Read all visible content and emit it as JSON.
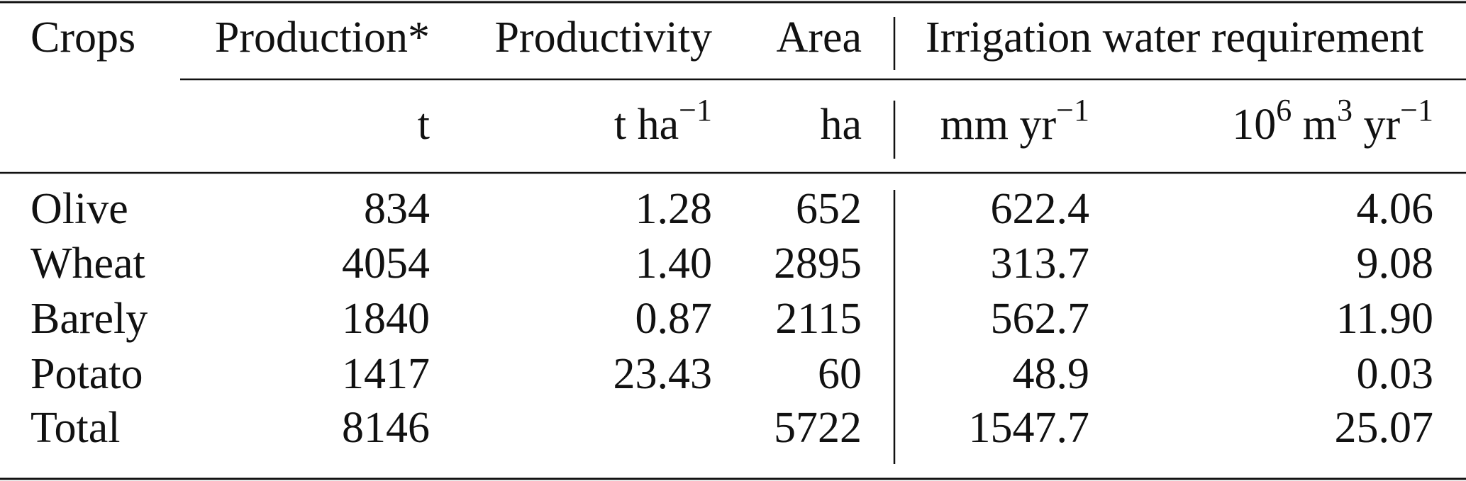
{
  "table": {
    "header": [
      "Crops",
      "Production*",
      "Productivity",
      "Area",
      "Irrigation water requirement"
    ],
    "units": [
      [
        {
          "text": "t"
        }
      ],
      [
        {
          "text": "t ha"
        },
        {
          "sup": "−1"
        }
      ],
      [
        {
          "text": "ha"
        }
      ],
      [
        {
          "text": "mm yr"
        },
        {
          "sup": "−1"
        }
      ],
      [
        {
          "text": "10"
        },
        {
          "sup": "6"
        },
        {
          "text": " m"
        },
        {
          "sup": "3"
        },
        {
          "text": " yr"
        },
        {
          "sup": "−1"
        }
      ]
    ],
    "rows": [
      [
        "Olive",
        "834",
        "1.28",
        "652",
        "622.4",
        "4.06"
      ],
      [
        "Wheat",
        "4054",
        "1.40",
        "2895",
        "313.7",
        "9.08"
      ],
      [
        "Barely",
        "1840",
        "0.87",
        "2115",
        "562.7",
        "11.90"
      ],
      [
        "Potato",
        "1417",
        "23.43",
        "60",
        "48.9",
        "0.03"
      ],
      [
        "Total",
        "8146",
        null,
        "5722",
        "1547.7",
        "25.07"
      ]
    ]
  }
}
